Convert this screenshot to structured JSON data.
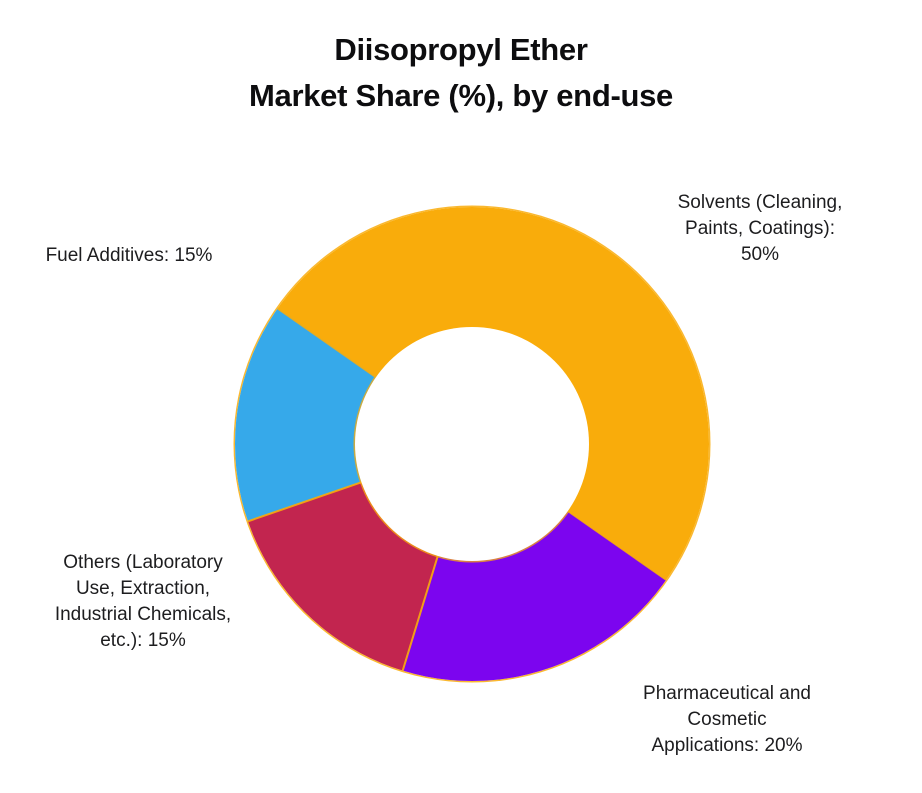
{
  "title": {
    "line1": "Diisopropyl Ether",
    "line2": "Market Share (%), by end-use"
  },
  "chart_data": {
    "type": "pie",
    "subtype": "donut",
    "title": "Diisopropyl Ether Market Share (%), by end-use",
    "categories": [
      "Solvents (Cleaning, Paints, Coatings)",
      "Pharmaceutical and Cosmetic Applications",
      "Others (Laboratory Use, Extraction, Industrial Chemicals, etc.)",
      "Fuel Additives"
    ],
    "values": [
      50,
      20,
      15,
      15
    ],
    "unit": "%",
    "colors": [
      "#F9AC0B",
      "#7C05EF",
      "#C2254F",
      "#36A9EA"
    ],
    "rotation_deg": -55,
    "inner_radius_ratio": 0.49,
    "legend_position": "none",
    "labels_position": "outside"
  },
  "annotations": [
    {
      "id": "solvents",
      "lines": [
        "Solvents (Cleaning,",
        "Paints, Coatings):",
        "50%"
      ]
    },
    {
      "id": "fuel-additives",
      "lines": [
        "Fuel Additives: 15%"
      ]
    },
    {
      "id": "others",
      "lines": [
        "Others (Laboratory",
        "Use, Extraction,",
        "Industrial Chemicals,",
        "etc.): 15%"
      ]
    },
    {
      "id": "pharma",
      "lines": [
        "Pharmaceutical and",
        "Cosmetic",
        "Applications: 20%"
      ]
    }
  ],
  "stroke_color": "#F9AC0B",
  "background_color": "#FFFFFF"
}
